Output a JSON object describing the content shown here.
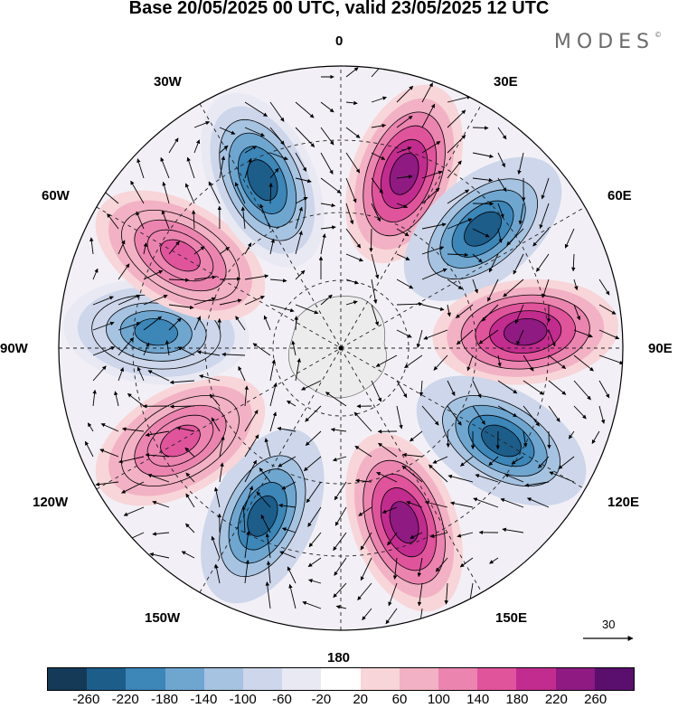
{
  "title": "Base 20/05/2025 00 UTC, valid 23/05/2025 12 UTC",
  "brand": "MODES",
  "brand_mark": "©",
  "longitude_labels": {
    "top": "0",
    "bottom": "180",
    "left": "90W",
    "right": "90E",
    "w30": "30W",
    "e30": "30E",
    "w60": "60W",
    "e60": "60E",
    "w120": "120W",
    "e120": "120E",
    "w150": "150W",
    "e150": "150E"
  },
  "reference_vector": "30",
  "colorbar": {
    "colors": [
      "#143a58",
      "#1d5d8a",
      "#3c86b8",
      "#6ea6d0",
      "#a6c3e1",
      "#cdd6ea",
      "#e9e9f4",
      "#ffffff",
      "#f8d5d8",
      "#f2b1c4",
      "#ec84b0",
      "#e0549c",
      "#c22c8e",
      "#8e1a82",
      "#5a0f6d"
    ],
    "labels": [
      "-260",
      "-220",
      "-180",
      "-140",
      "-100",
      "-60",
      "-20",
      "20",
      "60",
      "100",
      "140",
      "180",
      "220",
      "260"
    ]
  },
  "chart_data": {
    "type": "heatmap",
    "title": "Base 20/05/2025 00 UTC, valid 23/05/2025 12 UTC",
    "projection": "south polar stereographic",
    "field": "anomaly (shaded) with wind vectors",
    "levels": [
      -260,
      -220,
      -180,
      -140,
      -100,
      -60,
      -20,
      20,
      60,
      100,
      140,
      180,
      220,
      260
    ],
    "reference_vector": 30,
    "centers": [
      {
        "lon": 20,
        "value": 240
      },
      {
        "lon": 50,
        "value": -240
      },
      {
        "lon": 85,
        "value": 240
      },
      {
        "lon": 120,
        "value": -240
      },
      {
        "lon": 160,
        "value": 240
      },
      {
        "lon": -155,
        "value": -240
      },
      {
        "lon": -120,
        "value": 160
      },
      {
        "lon": -85,
        "value": -180
      },
      {
        "lon": -60,
        "value": 160
      },
      {
        "lon": -25,
        "value": -220
      }
    ]
  }
}
